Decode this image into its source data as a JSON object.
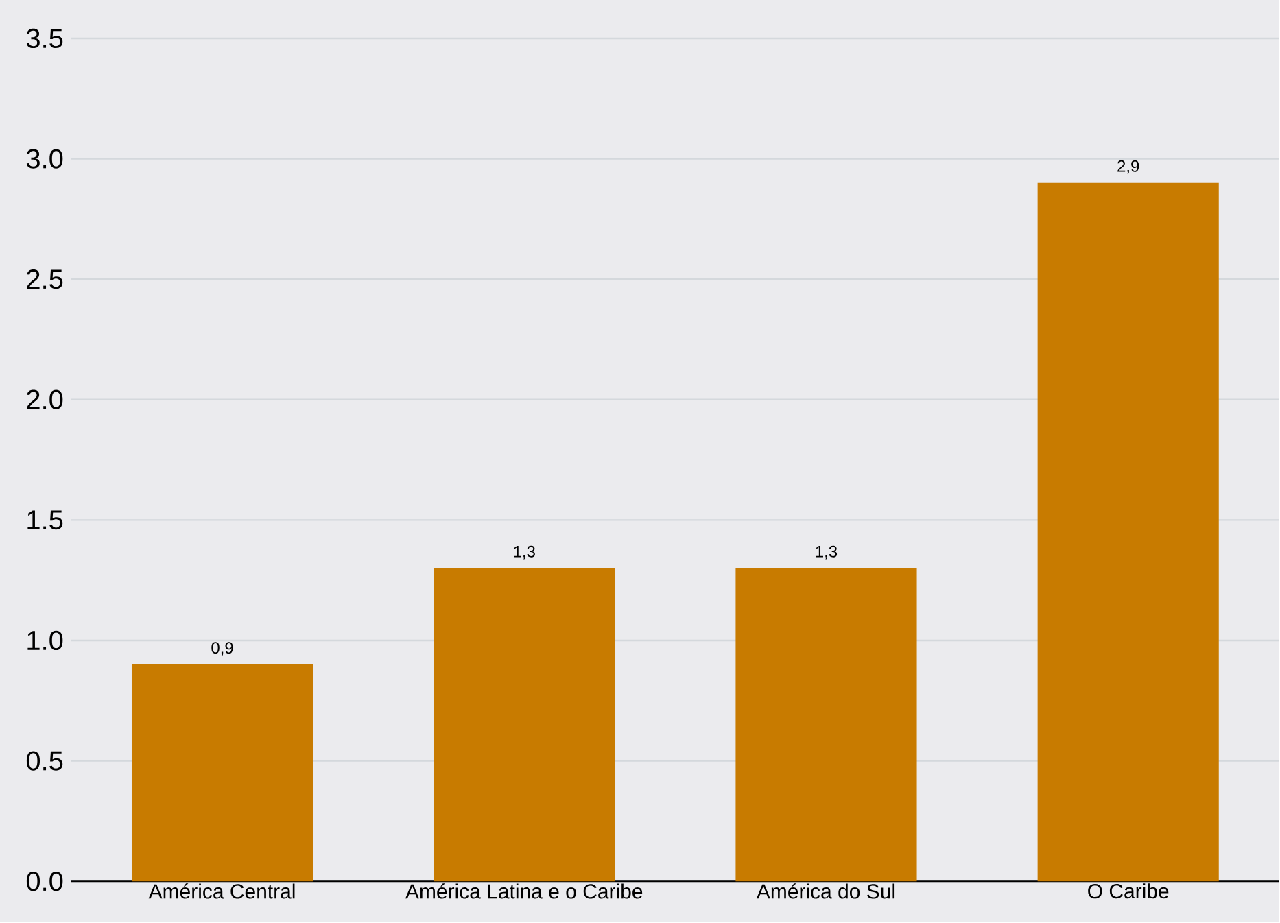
{
  "chart_data": {
    "type": "bar",
    "categories": [
      "América Central",
      "América Latina e o Caribe",
      "América do Sul",
      "O Caribe"
    ],
    "values": [
      0.9,
      1.3,
      1.3,
      2.9
    ],
    "value_labels": [
      "0,9",
      "1,3",
      "1,3",
      "2,9"
    ],
    "color": "#c87b00",
    "ylim": [
      0,
      3.5
    ],
    "yticks": [
      {
        "value": 0,
        "label": "0.0"
      },
      0.5,
      {
        "value": 1,
        "label": "1.0"
      },
      1.5,
      {
        "value": 2,
        "label": "2.0"
      },
      2.5,
      {
        "value": 3,
        "label": "3.0"
      },
      3.5
    ],
    "grid": "y"
  }
}
